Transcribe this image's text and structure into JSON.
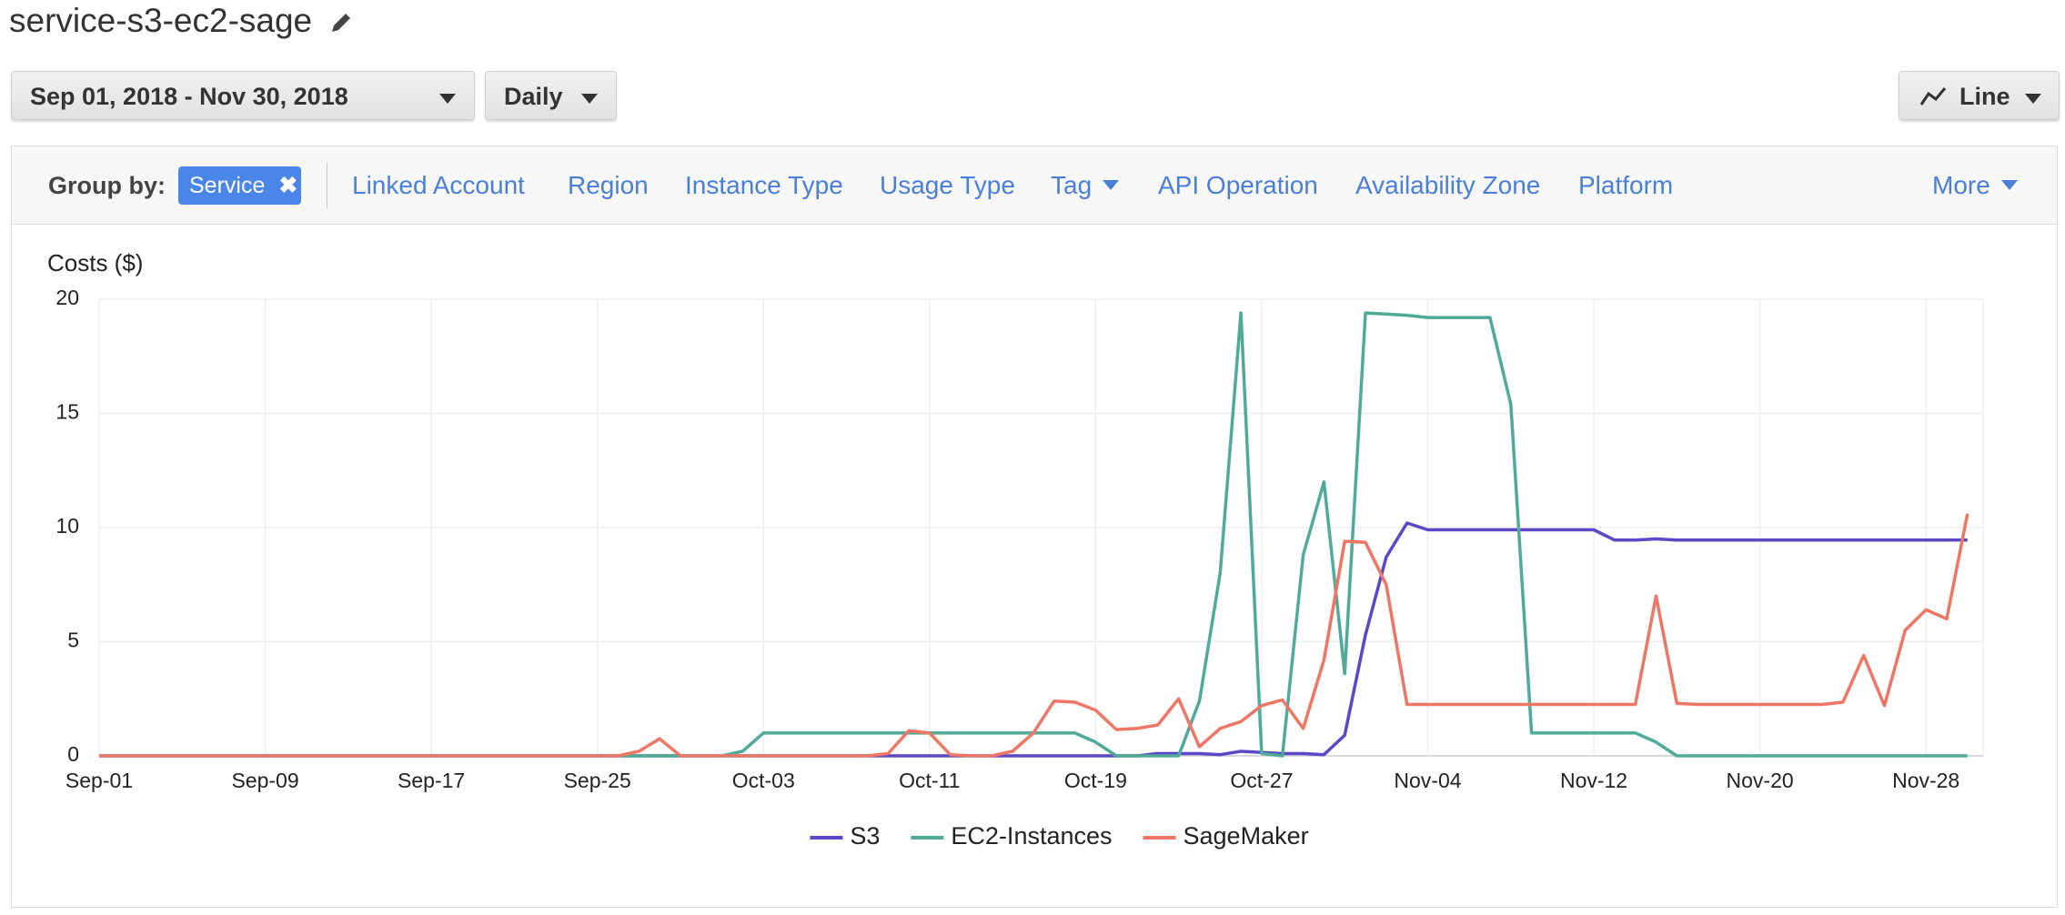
{
  "header": {
    "title": "service-s3-ec2-sage"
  },
  "controls": {
    "date_range": "Sep 01, 2018 - Nov 30, 2018",
    "granularity": "Daily",
    "chart_type": "Line"
  },
  "group_by": {
    "label": "Group by:",
    "selected": "Service",
    "options": [
      "Linked Account",
      "Region",
      "Instance Type",
      "Usage Type",
      "Tag",
      "API Operation",
      "Availability Zone",
      "Platform"
    ],
    "more": "More"
  },
  "chart_data": {
    "type": "line",
    "y_label": "Costs ($)",
    "categories": [
      "Sep-01",
      null,
      null,
      null,
      null,
      null,
      null,
      null,
      "Sep-09",
      null,
      null,
      null,
      null,
      null,
      null,
      null,
      "Sep-17",
      null,
      null,
      null,
      null,
      null,
      null,
      null,
      "Sep-25",
      null,
      null,
      null,
      null,
      null,
      null,
      null,
      "Oct-03",
      null,
      null,
      null,
      null,
      null,
      null,
      null,
      "Oct-11",
      null,
      null,
      null,
      null,
      null,
      null,
      null,
      "Oct-19",
      null,
      null,
      null,
      null,
      null,
      null,
      null,
      "Oct-27",
      null,
      null,
      null,
      null,
      null,
      null,
      null,
      "Nov-04",
      null,
      null,
      null,
      null,
      null,
      null,
      null,
      "Nov-12",
      null,
      null,
      null,
      null,
      null,
      null,
      null,
      "Nov-20",
      null,
      null,
      null,
      null,
      null,
      null,
      null,
      "Nov-28",
      null,
      null
    ],
    "series": [
      {
        "name": "S3",
        "color": "#5b48c8",
        "values": [
          0,
          0,
          0,
          0,
          0,
          0,
          0,
          0,
          0,
          0,
          0,
          0,
          0,
          0,
          0,
          0,
          0,
          0,
          0,
          0,
          0,
          0,
          0,
          0,
          0,
          0,
          0,
          0,
          0,
          0,
          0,
          0,
          0,
          0,
          0,
          0,
          0,
          0,
          0,
          0,
          0,
          0,
          0,
          0,
          0,
          0,
          0,
          0,
          0,
          0,
          0,
          0.1,
          0.1,
          0.1,
          0.05,
          0.2,
          0.15,
          0.1,
          0.1,
          0.05,
          0.9,
          5.3,
          8.7,
          10.2,
          9.9,
          9.9,
          9.9,
          9.9,
          9.9,
          9.9,
          9.9,
          9.9,
          9.9,
          9.45,
          9.45,
          9.5,
          9.45,
          9.45,
          9.45,
          9.45,
          9.45,
          9.45,
          9.45,
          9.45,
          9.45,
          9.45,
          9.45,
          9.45,
          9.45,
          9.45,
          9.45
        ]
      },
      {
        "name": "EC2-Instances",
        "color": "#4fab98",
        "values": [
          0,
          0,
          0,
          0,
          0,
          0,
          0,
          0,
          0,
          0,
          0,
          0,
          0,
          0,
          0,
          0,
          0,
          0,
          0,
          0,
          0,
          0,
          0,
          0,
          0,
          0,
          0,
          0,
          0,
          0,
          0,
          0.2,
          1,
          1,
          1,
          1,
          1,
          1,
          1,
          1,
          1,
          1,
          1,
          1,
          1,
          1,
          1,
          1,
          0.6,
          0,
          0,
          0,
          0,
          2.4,
          8,
          19.4,
          0.1,
          0,
          8.8,
          12,
          3.6,
          19.4,
          19.35,
          19.3,
          19.2,
          19.2,
          19.2,
          19.2,
          15.4,
          1,
          1,
          1,
          1,
          1,
          1,
          0.6,
          0,
          0,
          0,
          0,
          0,
          0,
          0,
          0,
          0,
          0,
          0,
          0,
          0,
          0,
          0
        ]
      },
      {
        "name": "SageMaker",
        "color": "#ef7564",
        "values": [
          0,
          0,
          0,
          0,
          0,
          0,
          0,
          0,
          0,
          0,
          0,
          0,
          0,
          0,
          0,
          0,
          0,
          0,
          0,
          0,
          0,
          0,
          0,
          0,
          0,
          0,
          0.2,
          0.75,
          0,
          0,
          0,
          0,
          0,
          0,
          0,
          0,
          0,
          0,
          0.1,
          1.1,
          1,
          0.05,
          0,
          0,
          0.2,
          1,
          2.4,
          2.35,
          2,
          1.15,
          1.2,
          1.35,
          2.5,
          0.4,
          1.2,
          1.5,
          2.2,
          2.45,
          1.2,
          4.2,
          9.4,
          9.35,
          7.5,
          2.25,
          2.25,
          2.25,
          2.25,
          2.25,
          2.25,
          2.25,
          2.25,
          2.25,
          2.25,
          2.25,
          2.25,
          7,
          2.3,
          2.25,
          2.25,
          2.25,
          2.25,
          2.25,
          2.25,
          2.25,
          2.35,
          4.4,
          2.2,
          5.5,
          6.4,
          6,
          10.6
        ]
      }
    ],
    "ylim": [
      0,
      20
    ],
    "yticks": [
      0,
      5,
      10,
      15,
      20
    ],
    "grid": true,
    "legend": "bottom"
  }
}
